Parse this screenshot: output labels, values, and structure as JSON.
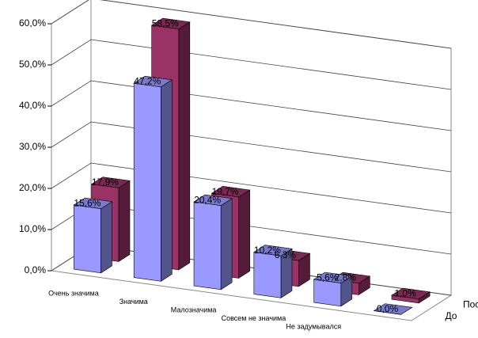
{
  "chart_data": {
    "type": "bar3d",
    "categories": [
      "Очень значима",
      "Значима",
      "Малозначима",
      "Совсем не значима",
      "Не задумывался",
      null
    ],
    "series": [
      {
        "name": "До",
        "color": "#9999ff",
        "values": [
          15.6,
          47.2,
          20.4,
          10.2,
          5.6,
          0.0
        ],
        "value_labels": [
          "15,6%",
          "47,2%",
          "20,4%",
          "10,2%",
          "5,6%",
          "0,0%"
        ]
      },
      {
        "name": "После",
        "color": "#993366",
        "values": [
          17.9,
          58.5,
          19.7,
          6.3,
          2.8,
          1.0
        ],
        "value_labels": [
          "17,9%",
          "58,5%",
          "19,7%",
          "6,3%",
          "2,8%",
          "1,0%"
        ]
      }
    ],
    "ylim": [
      0,
      60
    ],
    "yticks": [
      {
        "value": 0,
        "label": "0,0%"
      },
      {
        "value": 10,
        "label": "10,0%"
      },
      {
        "value": 20,
        "label": "20,0%"
      },
      {
        "value": 30,
        "label": "30,0%"
      },
      {
        "value": 40,
        "label": "40,0%"
      },
      {
        "value": 50,
        "label": "50,0%"
      },
      {
        "value": 60,
        "label": "60,0%"
      }
    ],
    "grid": true
  }
}
